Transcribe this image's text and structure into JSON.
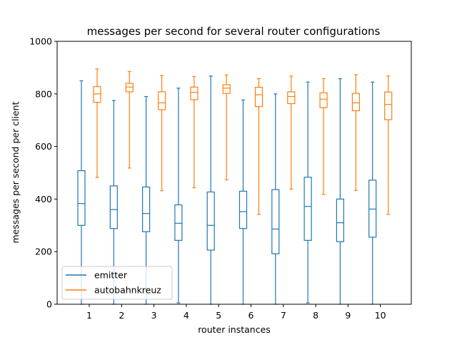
{
  "chart_data": {
    "type": "box",
    "title": "messages per second for several router configurations",
    "xlabel": "router instances",
    "ylabel": "messages per second per client",
    "ylim": [
      0,
      1000
    ],
    "yticks": [
      0,
      200,
      400,
      600,
      800,
      1000
    ],
    "categories": [
      "1",
      "2",
      "3",
      "4",
      "5",
      "6",
      "7",
      "8",
      "9",
      "10"
    ],
    "grid": false,
    "legend_position": "lower-left",
    "series": [
      {
        "name": "emitter",
        "color": "#1f77b4",
        "boxes": [
          {
            "whislo": 0,
            "q1": 300,
            "med": 383,
            "q3": 508,
            "whishi": 850
          },
          {
            "whislo": 0,
            "q1": 288,
            "med": 360,
            "q3": 450,
            "whishi": 775
          },
          {
            "whislo": 0,
            "q1": 276,
            "med": 345,
            "q3": 446,
            "whishi": 790
          },
          {
            "whislo": 5,
            "q1": 243,
            "med": 308,
            "q3": 378,
            "whishi": 822
          },
          {
            "whislo": 0,
            "q1": 206,
            "med": 300,
            "q3": 427,
            "whishi": 868
          },
          {
            "whislo": 0,
            "q1": 288,
            "med": 352,
            "q3": 430,
            "whishi": 777
          },
          {
            "whislo": 0,
            "q1": 192,
            "med": 286,
            "q3": 436,
            "whishi": 800
          },
          {
            "whislo": 5,
            "q1": 243,
            "med": 372,
            "q3": 483,
            "whishi": 845
          },
          {
            "whislo": 0,
            "q1": 238,
            "med": 310,
            "q3": 400,
            "whishi": 858
          },
          {
            "whislo": 0,
            "q1": 255,
            "med": 362,
            "q3": 472,
            "whishi": 845
          }
        ]
      },
      {
        "name": "autobahnkreuz",
        "color": "#ff7f0e",
        "boxes": [
          {
            "whislo": 482,
            "q1": 768,
            "med": 800,
            "q3": 828,
            "whishi": 895
          },
          {
            "whislo": 518,
            "q1": 808,
            "med": 826,
            "q3": 840,
            "whishi": 885
          },
          {
            "whislo": 432,
            "q1": 740,
            "med": 766,
            "q3": 808,
            "whishi": 870
          },
          {
            "whislo": 443,
            "q1": 778,
            "med": 806,
            "q3": 826,
            "whishi": 866
          },
          {
            "whislo": 473,
            "q1": 802,
            "med": 822,
            "q3": 835,
            "whishi": 872
          },
          {
            "whislo": 342,
            "q1": 752,
            "med": 797,
            "q3": 825,
            "whishi": 858
          },
          {
            "whislo": 438,
            "q1": 763,
            "med": 790,
            "q3": 808,
            "whishi": 868
          },
          {
            "whislo": 418,
            "q1": 748,
            "med": 780,
            "q3": 804,
            "whishi": 858
          },
          {
            "whislo": 433,
            "q1": 736,
            "med": 766,
            "q3": 802,
            "whishi": 873
          },
          {
            "whislo": 342,
            "q1": 702,
            "med": 760,
            "q3": 807,
            "whishi": 868
          }
        ]
      }
    ]
  }
}
